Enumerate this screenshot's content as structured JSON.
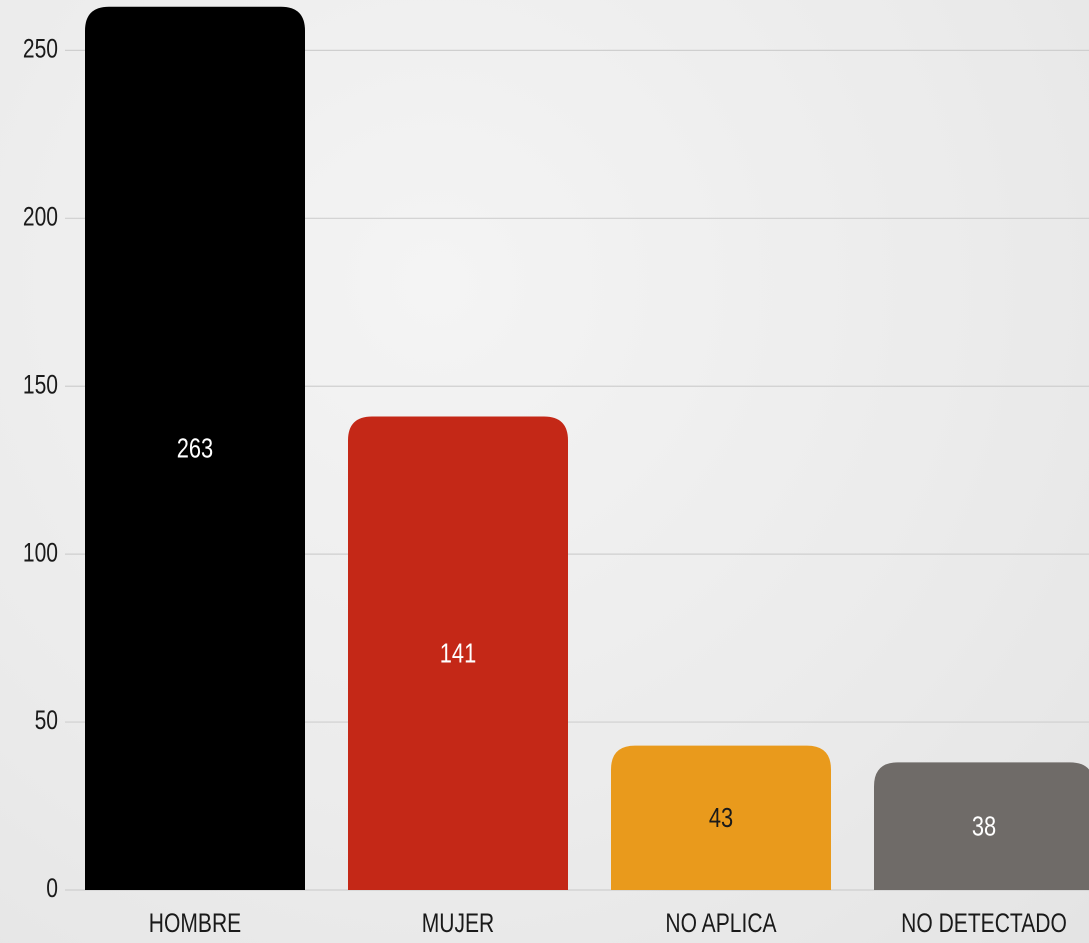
{
  "chart_data": {
    "type": "bar",
    "categories": [
      "HOMBRE",
      "MUJER",
      "NO APLICA",
      "NO DETECTADO"
    ],
    "values": [
      263,
      141,
      43,
      38
    ],
    "colors": [
      "#000000",
      "#c42817",
      "#e99a1c",
      "#6f6b68"
    ],
    "label_colors": [
      "#ffffff",
      "#ffffff",
      "#1a1a1a",
      "#ffffff"
    ],
    "ylim": [
      0,
      265
    ],
    "yticks": [
      0,
      50,
      100,
      150,
      200,
      250
    ],
    "grid": true
  }
}
